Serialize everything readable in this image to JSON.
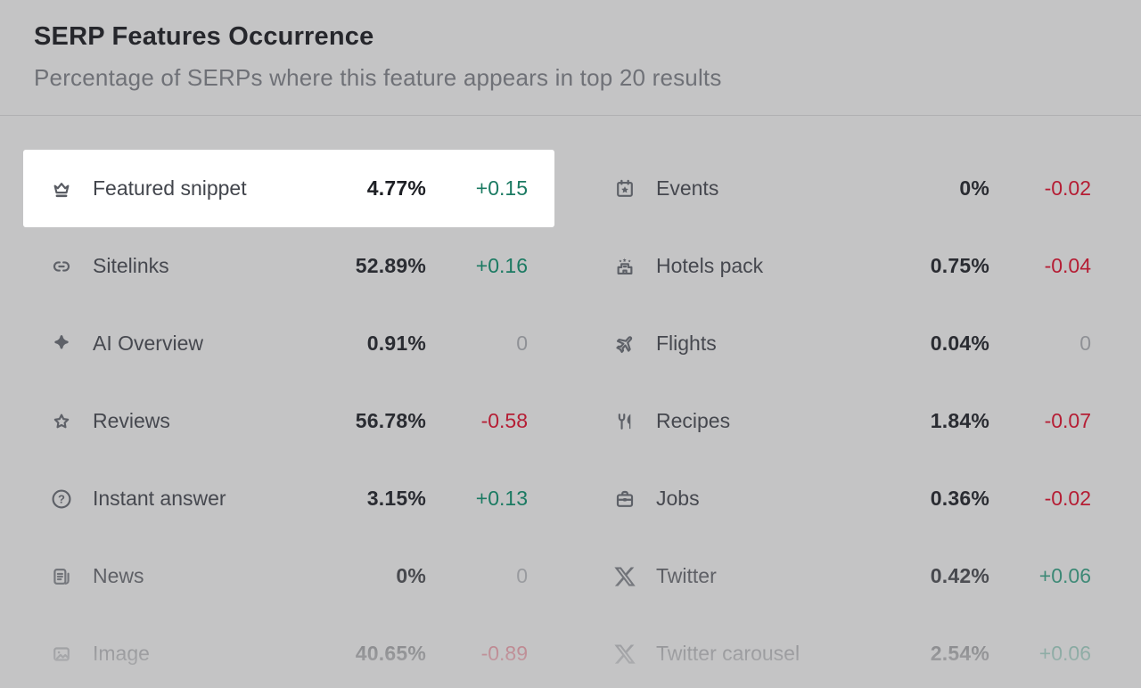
{
  "header": {
    "title": "SERP Features Occurrence",
    "subtitle": "Percentage of SERPs where this feature appears in top 20 results"
  },
  "colors": {
    "positive": "#1b7a62",
    "negative": "#b51d34",
    "neutral": "#8f9196",
    "spotlight_background": "#ffffff",
    "panel_background": "#c4c4c5"
  },
  "columns": {
    "left": [
      {
        "label": "Featured snippet",
        "value": "4.77%",
        "change": "+0.15",
        "trend": "up",
        "icon": "crown-icon",
        "highlighted": true
      },
      {
        "label": "Sitelinks",
        "value": "52.89%",
        "change": "+0.16",
        "trend": "up",
        "icon": "sitelinks-icon",
        "highlighted": false
      },
      {
        "label": "AI Overview",
        "value": "0.91%",
        "change": "0",
        "trend": "zero",
        "icon": "ai-sparkle-icon",
        "highlighted": false
      },
      {
        "label": "Reviews",
        "value": "56.78%",
        "change": "-0.58",
        "trend": "down",
        "icon": "star-icon",
        "highlighted": false
      },
      {
        "label": "Instant answer",
        "value": "3.15%",
        "change": "+0.13",
        "trend": "up",
        "icon": "question-circle-icon",
        "highlighted": false
      },
      {
        "label": "News",
        "value": "0%",
        "change": "0",
        "trend": "zero",
        "icon": "news-icon",
        "highlighted": false
      },
      {
        "label": "Image",
        "value": "40.65%",
        "change": "-0.89",
        "trend": "down",
        "icon": "image-icon",
        "highlighted": false
      }
    ],
    "right": [
      {
        "label": "Events",
        "value": "0%",
        "change": "-0.02",
        "trend": "down",
        "icon": "calendar-star-icon",
        "highlighted": false
      },
      {
        "label": "Hotels pack",
        "value": "0.75%",
        "change": "-0.04",
        "trend": "down",
        "icon": "hotel-icon",
        "highlighted": false
      },
      {
        "label": "Flights",
        "value": "0.04%",
        "change": "0",
        "trend": "zero",
        "icon": "plane-icon",
        "highlighted": false
      },
      {
        "label": "Recipes",
        "value": "1.84%",
        "change": "-0.07",
        "trend": "down",
        "icon": "utensils-icon",
        "highlighted": false
      },
      {
        "label": "Jobs",
        "value": "0.36%",
        "change": "-0.02",
        "trend": "down",
        "icon": "briefcase-icon",
        "highlighted": false
      },
      {
        "label": "Twitter",
        "value": "0.42%",
        "change": "+0.06",
        "trend": "up",
        "icon": "x-icon",
        "highlighted": false
      },
      {
        "label": "Twitter carousel",
        "value": "2.54%",
        "change": "+0.06",
        "trend": "up",
        "icon": "x-carousel-icon",
        "highlighted": false
      }
    ]
  }
}
